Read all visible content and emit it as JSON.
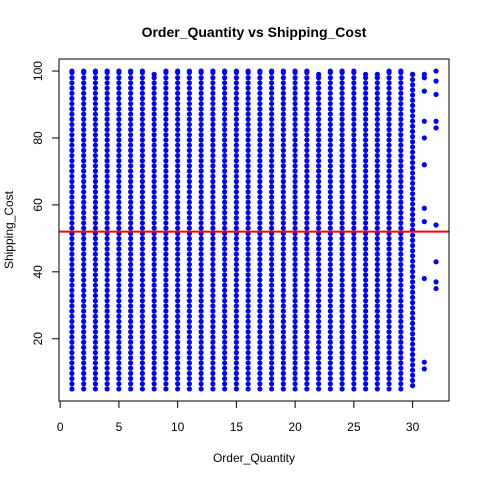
{
  "chart_data": {
    "type": "scatter",
    "title": "Order_Quantity vs Shipping_Cost",
    "xlabel": "Order_Quantity",
    "ylabel": "Shipping_Cost",
    "xlim": [
      -0.1,
      33.1
    ],
    "ylim": [
      1.4,
      103.6
    ],
    "x_ticks": [
      0,
      5,
      10,
      15,
      20,
      25,
      30
    ],
    "y_ticks": [
      20,
      40,
      60,
      80,
      100
    ],
    "point_color": "#0000ff",
    "reference_line": {
      "orientation": "horizontal",
      "y": 52,
      "color": "#ff0000"
    },
    "grid": false,
    "legend": "none",
    "series": [
      {
        "columns": [
          {
            "x": 1,
            "y_from": 5,
            "y_to": 100
          },
          {
            "x": 2,
            "y_from": 5,
            "y_to": 100
          },
          {
            "x": 3,
            "y_from": 5,
            "y_to": 100
          },
          {
            "x": 4,
            "y_from": 5,
            "y_to": 100
          },
          {
            "x": 5,
            "y_from": 5,
            "y_to": 100
          },
          {
            "x": 6,
            "y_from": 5,
            "y_to": 100
          },
          {
            "x": 7,
            "y_from": 5,
            "y_to": 100
          },
          {
            "x": 8,
            "y_from": 5,
            "y_to": 99
          },
          {
            "x": 9,
            "y_from": 5,
            "y_to": 100
          },
          {
            "x": 10,
            "y_from": 5,
            "y_to": 100
          },
          {
            "x": 11,
            "y_from": 5,
            "y_to": 100
          },
          {
            "x": 12,
            "y_from": 5,
            "y_to": 100
          },
          {
            "x": 13,
            "y_from": 5,
            "y_to": 100
          },
          {
            "x": 14,
            "y_from": 5,
            "y_to": 100
          },
          {
            "x": 15,
            "y_from": 5,
            "y_to": 100
          },
          {
            "x": 16,
            "y_from": 5,
            "y_to": 100
          },
          {
            "x": 17,
            "y_from": 5,
            "y_to": 100
          },
          {
            "x": 18,
            "y_from": 5,
            "y_to": 100
          },
          {
            "x": 19,
            "y_from": 5,
            "y_to": 100
          },
          {
            "x": 20,
            "y_from": 5,
            "y_to": 100
          },
          {
            "x": 21,
            "y_from": 5,
            "y_to": 100
          },
          {
            "x": 22,
            "y_from": 5,
            "y_to": 99
          },
          {
            "x": 23,
            "y_from": 5,
            "y_to": 100
          },
          {
            "x": 24,
            "y_from": 5,
            "y_to": 100
          },
          {
            "x": 25,
            "y_from": 5,
            "y_to": 100
          },
          {
            "x": 26,
            "y_from": 5,
            "y_to": 99
          },
          {
            "x": 27,
            "y_from": 5,
            "y_to": 99
          },
          {
            "x": 28,
            "y_from": 5,
            "y_to": 100
          },
          {
            "x": 29,
            "y_from": 5,
            "y_to": 100
          },
          {
            "x": 30,
            "y_from": 6,
            "y_to": 99
          }
        ],
        "points": [
          {
            "x": 31,
            "y": 11
          },
          {
            "x": 31,
            "y": 13
          },
          {
            "x": 31,
            "y": 38
          },
          {
            "x": 31,
            "y": 55
          },
          {
            "x": 31,
            "y": 59
          },
          {
            "x": 31,
            "y": 72
          },
          {
            "x": 31,
            "y": 80
          },
          {
            "x": 31,
            "y": 85
          },
          {
            "x": 31,
            "y": 94
          },
          {
            "x": 31,
            "y": 98
          },
          {
            "x": 31,
            "y": 99
          },
          {
            "x": 32,
            "y": 35
          },
          {
            "x": 32,
            "y": 37
          },
          {
            "x": 32,
            "y": 43
          },
          {
            "x": 32,
            "y": 54
          },
          {
            "x": 32,
            "y": 83
          },
          {
            "x": 32,
            "y": 85
          },
          {
            "x": 32,
            "y": 93
          },
          {
            "x": 32,
            "y": 97
          },
          {
            "x": 32,
            "y": 100
          }
        ]
      }
    ]
  }
}
